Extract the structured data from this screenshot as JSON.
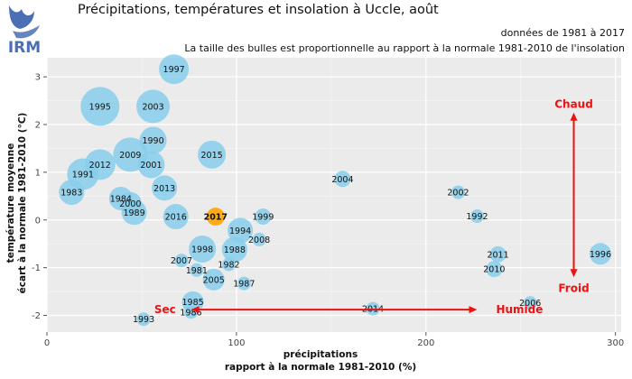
{
  "header": {
    "logo_text": "IRM",
    "title": "Précipitations, températures et insolation à Uccle, août",
    "subtitle_period": "données de 1981 à 2017",
    "subtitle_note": "La taille des bulles est proportionnelle au rapport à la normale 1981-2010 de l'insolation"
  },
  "chart_data": {
    "type": "scatter",
    "xlabel_line1": "précipitations",
    "xlabel_line2": "rapport à la normale 1981-2010 (%)",
    "ylabel_line1": "température moyenne",
    "ylabel_line2": "écart à la normale 1981-2010 (°C)",
    "xlim": [
      0,
      303
    ],
    "ylim": [
      -2.35,
      3.4
    ],
    "x_ticks": [
      0,
      100,
      200,
      300
    ],
    "y_ticks": [
      -2,
      -1,
      0,
      1,
      2,
      3
    ],
    "grid": true,
    "colors": {
      "panel": "#ebebeb",
      "grid": "#ffffff",
      "bubble": "#87ceeb",
      "highlight": "#ffa500",
      "annotation": "#ee1111"
    },
    "bubble_size_note": "proportional to sunshine ratio vs 1981-2010 normal",
    "points": [
      {
        "year": "1981",
        "x": 79,
        "y": -1.05,
        "sun": 0.35
      },
      {
        "year": "1982",
        "x": 96,
        "y": -0.93,
        "sun": 0.35
      },
      {
        "year": "1983",
        "x": 13,
        "y": 0.58,
        "sun": 1.0
      },
      {
        "year": "1984",
        "x": 39,
        "y": 0.45,
        "sun": 0.9
      },
      {
        "year": "1985",
        "x": 77,
        "y": -1.72,
        "sun": 0.8
      },
      {
        "year": "1986",
        "x": 76,
        "y": -1.93,
        "sun": 0.35
      },
      {
        "year": "1987",
        "x": 104,
        "y": -1.33,
        "sun": 0.35
      },
      {
        "year": "1988",
        "x": 99,
        "y": -0.62,
        "sun": 1.0
      },
      {
        "year": "1989",
        "x": 46,
        "y": 0.16,
        "sun": 1.0
      },
      {
        "year": "1990",
        "x": 56,
        "y": 1.67,
        "sun": 1.1
      },
      {
        "year": "1991",
        "x": 19,
        "y": 0.96,
        "sun": 1.35
      },
      {
        "year": "1992",
        "x": 227,
        "y": 0.08,
        "sun": 0.35
      },
      {
        "year": "1993",
        "x": 51,
        "y": -2.08,
        "sun": 0.35
      },
      {
        "year": "1994",
        "x": 102,
        "y": -0.22,
        "sun": 1.0
      },
      {
        "year": "1995",
        "x": 28,
        "y": 2.38,
        "sun": 1.75
      },
      {
        "year": "1996",
        "x": 292,
        "y": -0.71,
        "sun": 0.8
      },
      {
        "year": "1997",
        "x": 67,
        "y": 3.16,
        "sun": 1.25
      },
      {
        "year": "1998",
        "x": 82,
        "y": -0.61,
        "sun": 1.1
      },
      {
        "year": "1999",
        "x": 114,
        "y": 0.07,
        "sun": 0.5
      },
      {
        "year": "2000",
        "x": 44,
        "y": 0.35,
        "sun": 0.85
      },
      {
        "year": "2001",
        "x": 55,
        "y": 1.16,
        "sun": 1.1
      },
      {
        "year": "2002",
        "x": 217,
        "y": 0.58,
        "sun": 0.35
      },
      {
        "year": "2003",
        "x": 56,
        "y": 2.38,
        "sun": 1.45
      },
      {
        "year": "2004",
        "x": 156,
        "y": 0.86,
        "sun": 0.5
      },
      {
        "year": "2005",
        "x": 88,
        "y": -1.25,
        "sun": 0.8
      },
      {
        "year": "2006",
        "x": 255,
        "y": -1.74,
        "sun": 0.35
      },
      {
        "year": "2007",
        "x": 71,
        "y": -0.85,
        "sun": 0.35
      },
      {
        "year": "2008",
        "x": 112,
        "y": -0.41,
        "sun": 0.35
      },
      {
        "year": "2009",
        "x": 44,
        "y": 1.37,
        "sun": 1.5
      },
      {
        "year": "2010",
        "x": 236,
        "y": -1.03,
        "sun": 0.5
      },
      {
        "year": "2011",
        "x": 238,
        "y": -0.72,
        "sun": 0.5
      },
      {
        "year": "2012",
        "x": 28,
        "y": 1.16,
        "sun": 1.3
      },
      {
        "year": "2013",
        "x": 62,
        "y": 0.67,
        "sun": 1.0
      },
      {
        "year": "2014",
        "x": 172,
        "y": -1.86,
        "sun": 0.35
      },
      {
        "year": "2015",
        "x": 87,
        "y": 1.37,
        "sun": 1.15
      },
      {
        "year": "2016",
        "x": 68,
        "y": 0.07,
        "sun": 1.0
      },
      {
        "year": "2017",
        "x": 89,
        "y": 0.07,
        "sun": 0.6,
        "highlight": true
      }
    ],
    "annotations": {
      "warm": "Chaud",
      "cold": "Froid",
      "dry": "Sec",
      "wet": "Humide"
    }
  }
}
